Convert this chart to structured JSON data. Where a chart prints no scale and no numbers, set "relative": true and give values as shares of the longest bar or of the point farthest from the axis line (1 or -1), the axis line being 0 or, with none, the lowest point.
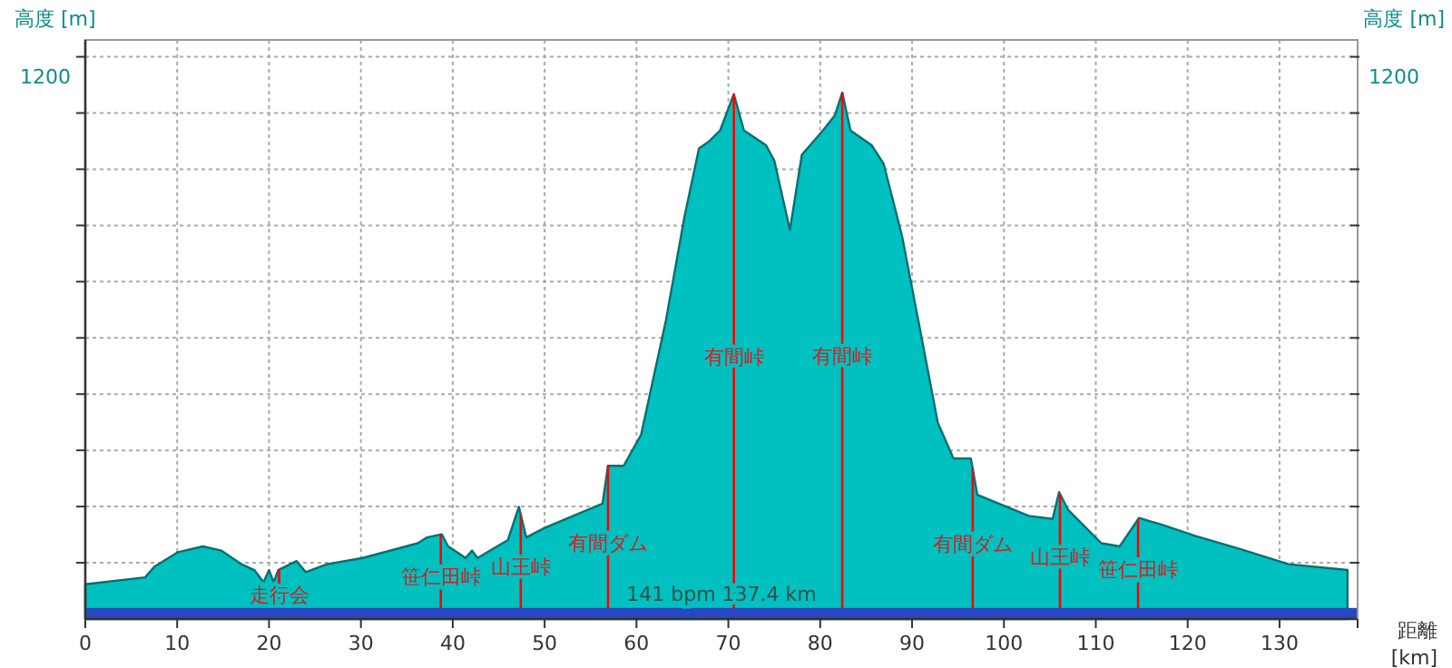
{
  "chart_data": {
    "type": "area",
    "relative": true,
    "xlabel": "距離 [km]",
    "ylabel": "高度 [m]",
    "y2label": "高度 [m]",
    "x": [
      0,
      6.5,
      7.5,
      10.1,
      12.8,
      14.8,
      17.0,
      18.4,
      19.4,
      20.0,
      20.5,
      21.0,
      23.0,
      24.0,
      26.3,
      30.2,
      36.2,
      37.2,
      38.8,
      39.5,
      41.4,
      42.1,
      42.7,
      46.0,
      47.2,
      48.0,
      50.0,
      56.3,
      56.9,
      58.6,
      60.5,
      63.2,
      65.2,
      66.8,
      67.8,
      69.1,
      70.6,
      71.7,
      74.1,
      75.0,
      76.7,
      78.0,
      80.3,
      81.6,
      82.4,
      83.3,
      85.6,
      86.9,
      88.9,
      90.8,
      92.8,
      94.5,
      96.4,
      97.1,
      102.7,
      105.3,
      106.0,
      107.0,
      110.6,
      112.6,
      114.7,
      117.2,
      120.8,
      125.7,
      131.0,
      137.4
    ],
    "series": [
      {
        "color": "#00c0c0",
        "values": [
          0.066,
          0.079,
          0.099,
          0.127,
          0.138,
          0.13,
          0.104,
          0.093,
          0.07,
          0.093,
          0.07,
          0.093,
          0.11,
          0.089,
          0.104,
          0.116,
          0.144,
          0.155,
          0.161,
          0.138,
          0.116,
          0.13,
          0.116,
          0.15,
          0.213,
          0.155,
          0.173,
          0.219,
          0.291,
          0.291,
          0.35,
          0.567,
          0.762,
          0.894,
          0.906,
          0.928,
          0.997,
          0.928,
          0.9,
          0.871,
          0.739,
          0.882,
          0.928,
          0.957,
          1,
          0.928,
          0.9,
          0.865,
          0.728,
          0.556,
          0.373,
          0.305,
          0.305,
          0.236,
          0.196,
          0.19,
          0.241,
          0.207,
          0.144,
          0.138,
          0.192,
          0.179,
          0.158,
          0.133,
          0.104,
          0.093
        ]
      }
    ],
    "xlim": [
      0,
      138.5
    ],
    "xticks": [
      0,
      10,
      20,
      30,
      40,
      50,
      60,
      70,
      80,
      90,
      100,
      110,
      120,
      130
    ],
    "grid": true,
    "marker": "none",
    "ref_lines": [
      {
        "axis": "x",
        "value": 21.1,
        "label": "走行会",
        "color": "#ff0000"
      },
      {
        "axis": "x",
        "value": 38.7,
        "label": "笹仁田峠",
        "color": "#ff0000"
      },
      {
        "axis": "x",
        "value": 47.4,
        "label": "山王峠",
        "color": "#ff0000"
      },
      {
        "axis": "x",
        "value": 56.9,
        "label": "有間ダム",
        "color": "#ff0000"
      },
      {
        "axis": "x",
        "value": 70.6,
        "label": "有間峠",
        "color": "#ff0000"
      },
      {
        "axis": "x",
        "value": 82.4,
        "label": "有間峠",
        "color": "#ff0000"
      },
      {
        "axis": "x",
        "value": 96.6,
        "label": "有間ダム",
        "color": "#ff0000"
      },
      {
        "axis": "x",
        "value": 106.1,
        "label": "山王峠",
        "color": "#ff0000"
      },
      {
        "axis": "x",
        "value": 114.6,
        "label": "笹仁田峠",
        "color": "#ff0000"
      }
    ],
    "bands": [
      {
        "axis": "y",
        "from": 0,
        "to": 0.021,
        "color": "#2848c0"
      }
    ],
    "annotations": [
      "141 bpm 137.4 km",
      "1200",
      "1200"
    ]
  }
}
